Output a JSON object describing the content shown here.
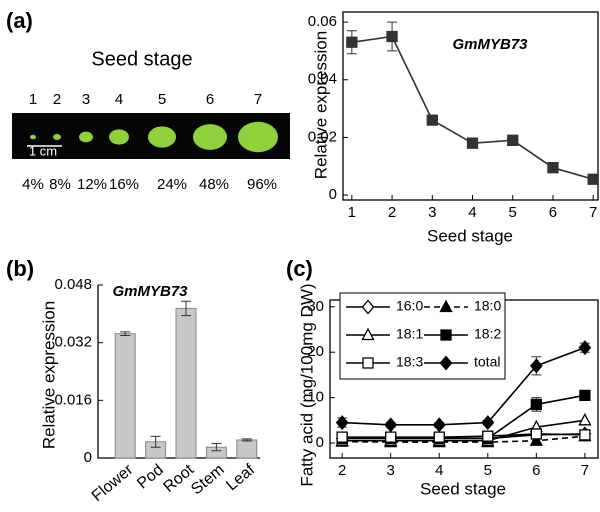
{
  "panel_labels": [
    "(a)",
    "(b)",
    "(c)"
  ],
  "seed_photo": {
    "title": "Seed stage",
    "stages": [
      "1",
      "2",
      "3",
      "4",
      "5",
      "6",
      "7"
    ],
    "scale_bar": "1 cm",
    "percentages": [
      "4%",
      "8%",
      "12%",
      "16%",
      "24%",
      "48%",
      "96%"
    ]
  },
  "chart_data": [
    {
      "type": "line",
      "title": "GmMYB73",
      "x": [
        1,
        2,
        3,
        4,
        5,
        6,
        7
      ],
      "values": [
        0.053,
        0.055,
        0.026,
        0.018,
        0.019,
        0.0095,
        0.0055
      ],
      "errors": [
        0.004,
        0.005,
        0.0015,
        0.0015,
        0.001,
        0.001,
        0.0008
      ],
      "color": "#333333",
      "marker": "square-filled",
      "xlim": [
        0.78,
        7.12
      ],
      "ylim": [
        -0.0017,
        0.0635
      ],
      "xticks": [
        1,
        2,
        3,
        4,
        5,
        6,
        7
      ],
      "yticks": [
        0,
        0.02,
        0.04,
        0.06
      ],
      "xlabel": "Seed stage",
      "ylabel": "Relative expression"
    },
    {
      "type": "bar",
      "title": "GmMYB73",
      "categories": [
        "Flower",
        "Pod",
        "Root",
        "Stem",
        "Leaf"
      ],
      "values": [
        0.0345,
        0.0045,
        0.0415,
        0.003,
        0.005
      ],
      "errors": [
        0.0005,
        0.0015,
        0.002,
        0.001,
        0.0003
      ],
      "color": "#c8c8c8",
      "ylim": [
        0,
        0.048
      ],
      "yticks": [
        0,
        0.016,
        0.032,
        0.048
      ],
      "ylabel": "Relative expression"
    },
    {
      "type": "line",
      "x": [
        2,
        3,
        4,
        5,
        6,
        7
      ],
      "series": [
        {
          "name": "16:0",
          "color": "#000000",
          "marker": "diamond-open",
          "values": [
            1,
            1,
            1,
            1,
            1.8,
            2
          ]
        },
        {
          "name": "18:0",
          "color": "#000000",
          "marker": "triangle-filled",
          "dashed": true,
          "values": [
            0.3,
            0.2,
            0.2,
            0.2,
            0.5,
            1.5
          ]
        },
        {
          "name": "18:1",
          "color": "#000000",
          "marker": "triangle-open",
          "values": [
            0.5,
            0.5,
            0.5,
            0.5,
            3.5,
            5
          ]
        },
        {
          "name": "18:2",
          "color": "#000000",
          "marker": "square-filled",
          "values": [
            1,
            1,
            1,
            1,
            8.5,
            10.5
          ],
          "errors": [
            0.3,
            0.3,
            0.3,
            0.3,
            1.5,
            1
          ]
        },
        {
          "name": "18:3",
          "color": "#000000",
          "marker": "square-open",
          "values": [
            1.3,
            1.3,
            1.3,
            1.5,
            2,
            1.8
          ]
        },
        {
          "name": "total",
          "color": "#000000",
          "marker": "diamond-filled",
          "values": [
            4.5,
            4,
            4,
            4.5,
            17,
            21
          ],
          "errors": [
            1,
            0.5,
            0.5,
            0.5,
            2,
            1
          ]
        }
      ],
      "xlim": [
        1.75,
        7.27
      ],
      "ylim": [
        -3.3,
        31.5
      ],
      "xticks": [
        2,
        3,
        4,
        5,
        6,
        7
      ],
      "yticks": [
        0,
        10,
        20,
        30
      ],
      "xlabel": "Seed stage",
      "ylabel": "Fatty acid  (mg/100mg DW)"
    }
  ]
}
